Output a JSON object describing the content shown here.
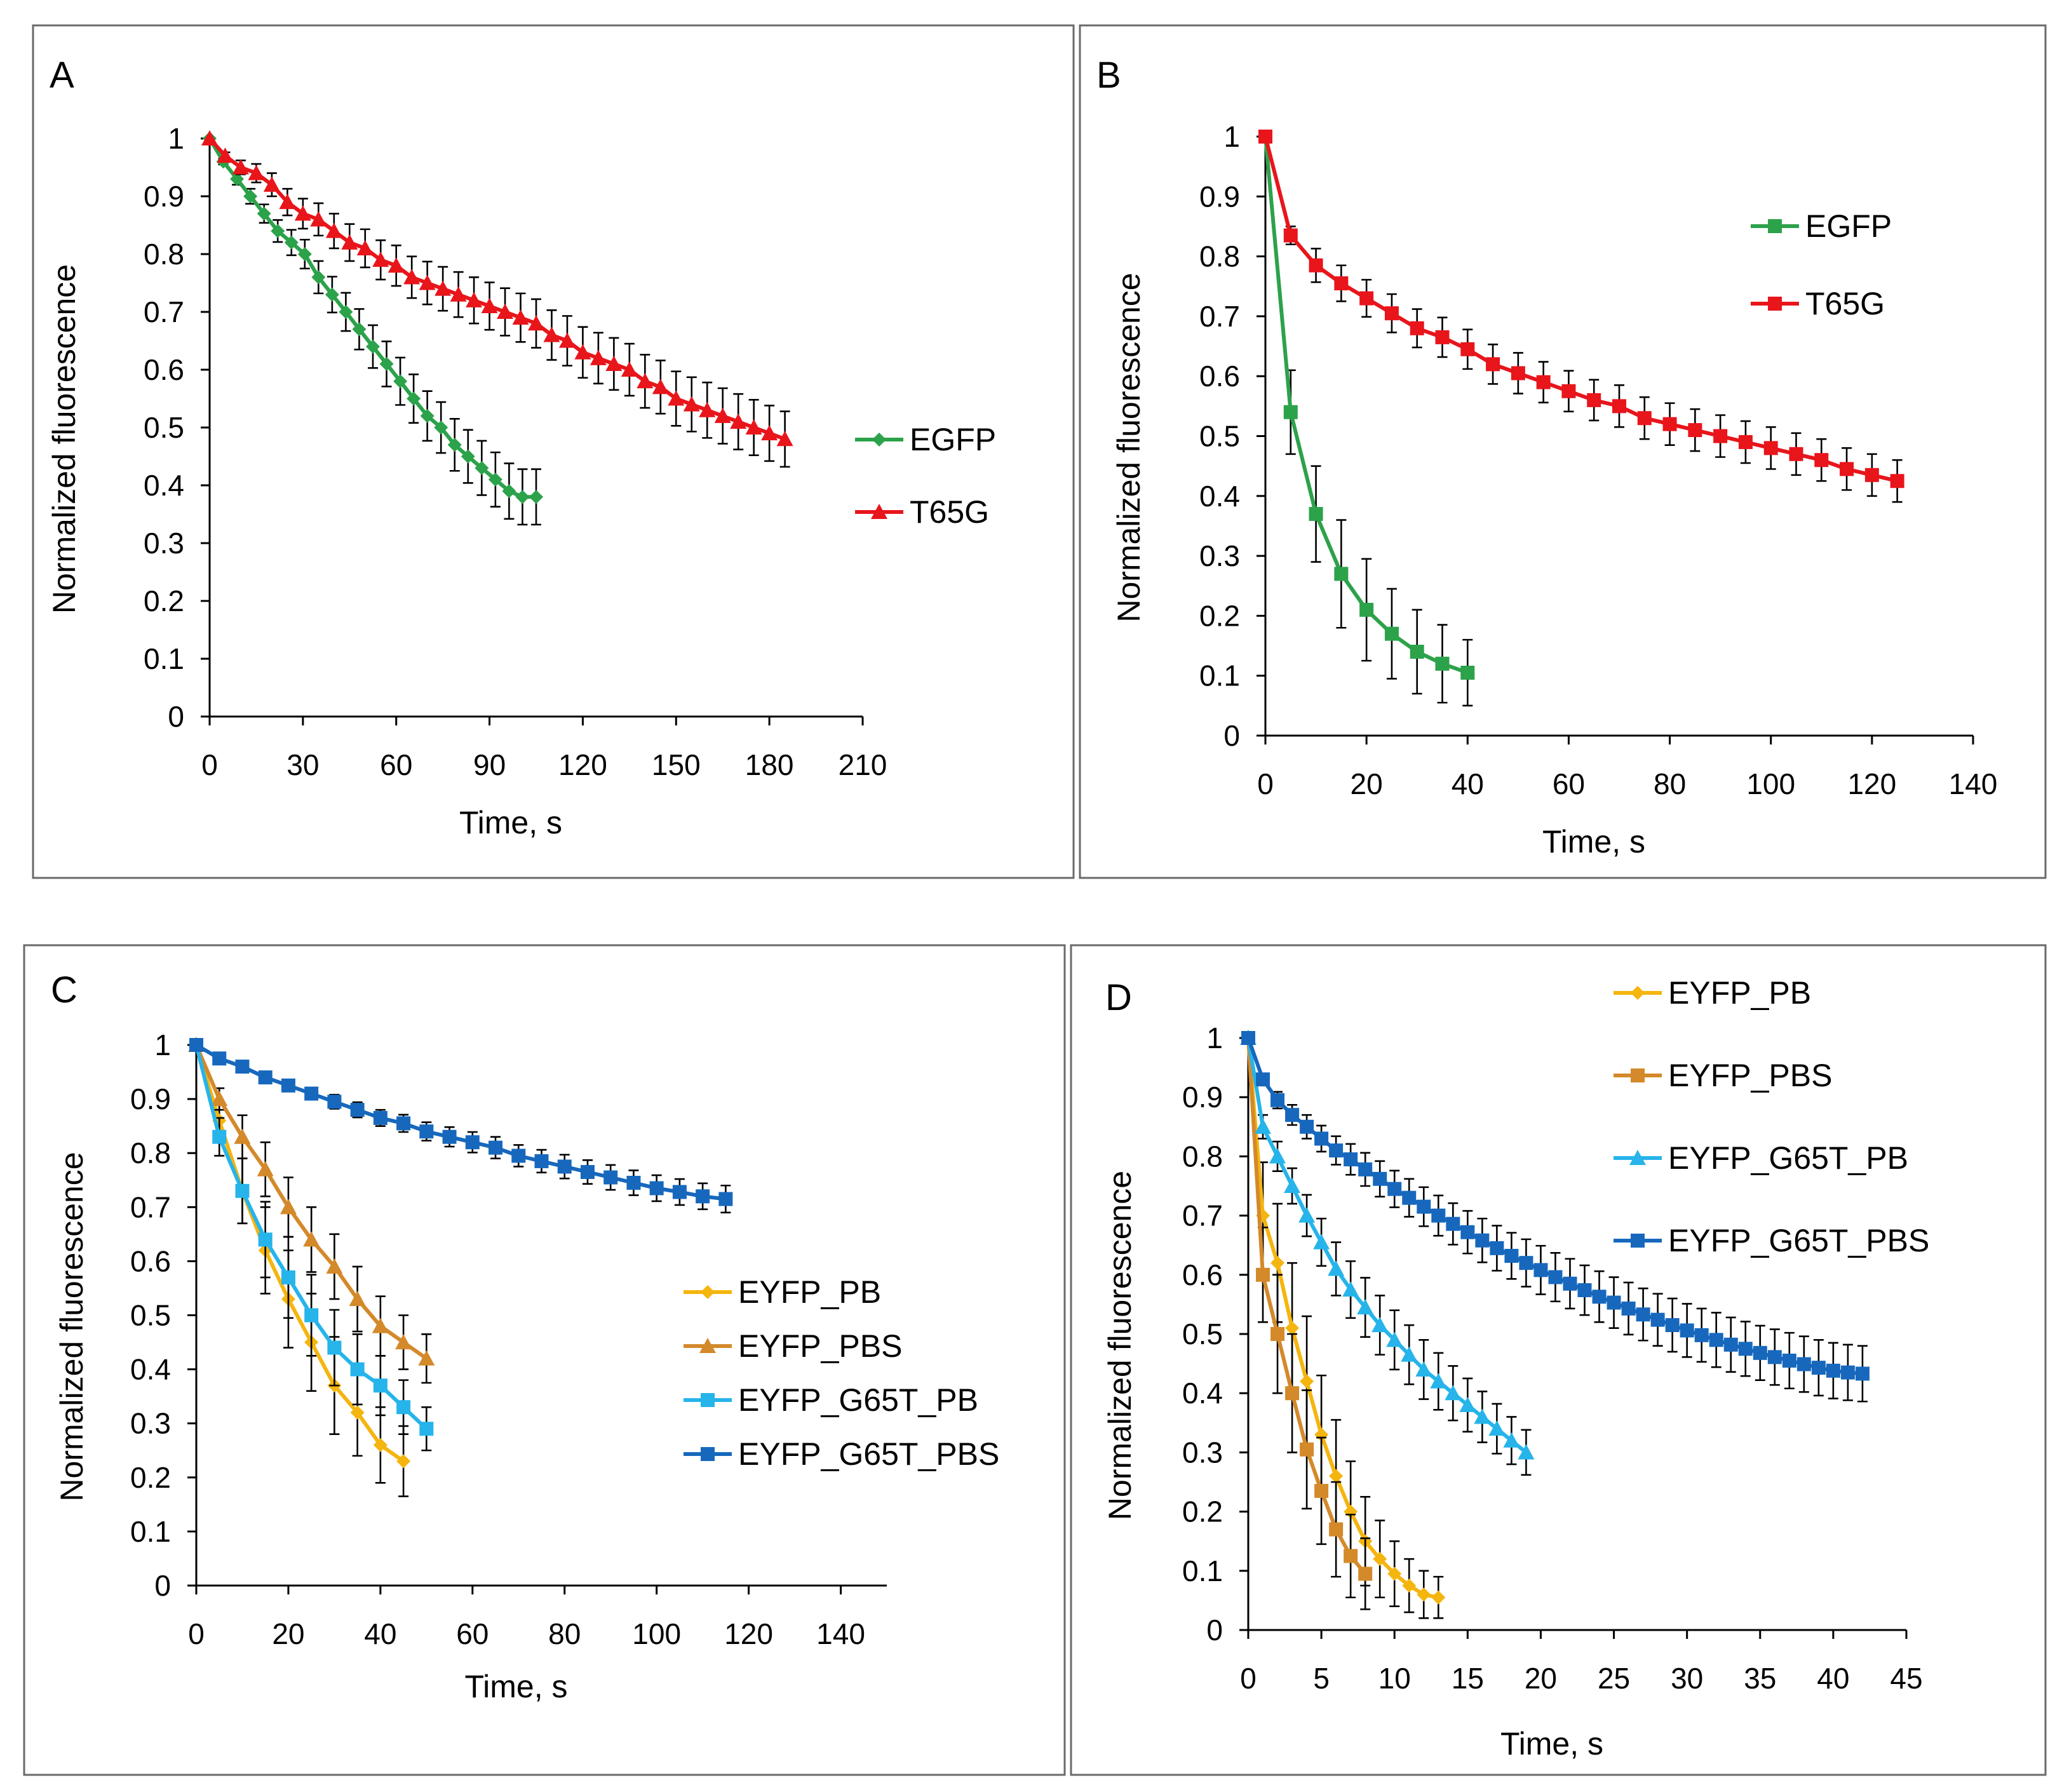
{
  "chart_data": [
    {
      "panel": "A",
      "type": "line",
      "xlabel": "Time, s",
      "ylabel": "Normalized fluorescence",
      "xlim": [
        0,
        210
      ],
      "ylim": [
        0,
        1
      ],
      "xticks": [
        0,
        30,
        60,
        90,
        120,
        150,
        180,
        210
      ],
      "yticks": [
        0,
        0.1,
        0.2,
        0.3,
        0.4,
        0.5,
        0.6,
        0.7,
        0.8,
        0.9,
        1
      ],
      "ytick_labels": [
        "0",
        "0.1",
        "0.2",
        "0.3",
        "0.4",
        "0.5",
        "0.6",
        "0.7",
        "0.8",
        "0.9",
        "1"
      ],
      "legend": "right",
      "series": [
        {
          "name": "EGFP",
          "color": "#2ca24a",
          "marker": "diamond",
          "x": [
            0,
            4.4,
            8.8,
            13.1,
            17.5,
            21.9,
            26.3,
            30.6,
            35,
            39.4,
            43.8,
            48.1,
            52.5,
            56.9,
            61.3,
            65.6,
            70,
            74.4,
            78.8,
            83.1,
            87.5,
            91.9,
            96.3,
            100.6,
            105
          ],
          "y": [
            1,
            0.96,
            0.93,
            0.9,
            0.87,
            0.84,
            0.82,
            0.8,
            0.76,
            0.73,
            0.7,
            0.67,
            0.64,
            0.61,
            0.58,
            0.55,
            0.52,
            0.5,
            0.47,
            0.45,
            0.43,
            0.41,
            0.39,
            0.38,
            0.38
          ],
          "err": [
            0,
            0.005,
            0.01,
            0.013,
            0.016,
            0.019,
            0.022,
            0.025,
            0.028,
            0.031,
            0.033,
            0.035,
            0.037,
            0.039,
            0.041,
            0.042,
            0.043,
            0.044,
            0.045,
            0.046,
            0.047,
            0.047,
            0.048,
            0.048,
            0.048
          ]
        },
        {
          "name": "T65G",
          "color": "#e8151b",
          "marker": "triangle",
          "x": [
            0,
            5,
            10,
            15,
            20,
            25,
            30,
            35,
            40,
            45,
            50,
            55,
            60,
            65,
            70,
            75,
            80,
            85,
            90,
            95,
            100,
            105,
            110,
            115,
            120,
            125,
            130,
            135,
            140,
            145,
            150,
            155,
            160,
            165,
            170,
            175,
            180,
            185
          ],
          "y": [
            1,
            0.97,
            0.95,
            0.94,
            0.92,
            0.89,
            0.87,
            0.86,
            0.84,
            0.82,
            0.81,
            0.79,
            0.78,
            0.76,
            0.75,
            0.74,
            0.73,
            0.72,
            0.71,
            0.7,
            0.69,
            0.68,
            0.66,
            0.65,
            0.63,
            0.62,
            0.61,
            0.6,
            0.58,
            0.57,
            0.55,
            0.54,
            0.53,
            0.52,
            0.51,
            0.5,
            0.49,
            0.48
          ],
          "err": [
            0,
            0.006,
            0.012,
            0.016,
            0.02,
            0.023,
            0.026,
            0.028,
            0.03,
            0.032,
            0.033,
            0.034,
            0.035,
            0.036,
            0.037,
            0.038,
            0.039,
            0.04,
            0.041,
            0.041,
            0.042,
            0.042,
            0.043,
            0.043,
            0.044,
            0.044,
            0.045,
            0.045,
            0.046,
            0.046,
            0.047,
            0.047,
            0.048,
            0.048,
            0.048,
            0.048,
            0.048,
            0.048
          ]
        }
      ]
    },
    {
      "panel": "B",
      "type": "line",
      "xlabel": "Time, s",
      "ylabel": "Normalized fluorescence",
      "xlim": [
        0,
        140
      ],
      "ylim": [
        0,
        1
      ],
      "xticks": [
        0,
        20,
        40,
        60,
        80,
        100,
        120,
        140
      ],
      "yticks": [
        0,
        0.1,
        0.2,
        0.3,
        0.4,
        0.5,
        0.6,
        0.7,
        0.8,
        0.9,
        1
      ],
      "ytick_labels": [
        "0",
        "0.1",
        "0.2",
        "0.3",
        "0.4",
        "0.5",
        "0.6",
        "0.7",
        "0.8",
        "0.9",
        "1"
      ],
      "legend": "top-right",
      "series": [
        {
          "name": "EGFP",
          "color": "#2ca24a",
          "marker": "square",
          "x": [
            0,
            5,
            10,
            15,
            20,
            25,
            30,
            35,
            40
          ],
          "y": [
            1,
            0.54,
            0.37,
            0.27,
            0.21,
            0.17,
            0.14,
            0.12,
            0.105
          ],
          "err": [
            0,
            0.07,
            0.08,
            0.09,
            0.085,
            0.075,
            0.07,
            0.065,
            0.055
          ]
        },
        {
          "name": "T65G",
          "color": "#e8151b",
          "marker": "square",
          "x": [
            0,
            5,
            10,
            15,
            20,
            25,
            30,
            35,
            40,
            45,
            50,
            55,
            60,
            65,
            70,
            75,
            80,
            85,
            90,
            95,
            100,
            105,
            110,
            115,
            120,
            125
          ],
          "y": [
            1,
            0.835,
            0.785,
            0.755,
            0.73,
            0.705,
            0.68,
            0.665,
            0.645,
            0.62,
            0.605,
            0.59,
            0.575,
            0.56,
            0.55,
            0.53,
            0.52,
            0.51,
            0.5,
            0.49,
            0.48,
            0.47,
            0.46,
            0.445,
            0.435,
            0.425
          ],
          "err": [
            0,
            0.015,
            0.028,
            0.03,
            0.031,
            0.032,
            0.032,
            0.033,
            0.033,
            0.033,
            0.034,
            0.034,
            0.034,
            0.034,
            0.035,
            0.035,
            0.035,
            0.035,
            0.035,
            0.035,
            0.035,
            0.035,
            0.035,
            0.035,
            0.035,
            0.035
          ]
        }
      ]
    },
    {
      "panel": "C",
      "type": "line",
      "xlabel": "Time, s",
      "ylabel": "Normalized fluorescence",
      "xlim": [
        0,
        150
      ],
      "ylim": [
        0,
        1
      ],
      "xticks": [
        0,
        20,
        40,
        60,
        80,
        100,
        120,
        140
      ],
      "yticks": [
        0,
        0.1,
        0.2,
        0.3,
        0.4,
        0.5,
        0.6,
        0.7,
        0.8,
        0.9,
        1
      ],
      "ytick_labels": [
        "0",
        "0.1",
        "0.2",
        "0.3",
        "0.4",
        "0.5",
        "0.6",
        "0.7",
        "0.8",
        "0.9",
        "1"
      ],
      "legend": "right",
      "series": [
        {
          "name": "EYFP_PB",
          "color": "#f5b50f",
          "marker": "diamond",
          "x": [
            0,
            5,
            10,
            15,
            20,
            25,
            30,
            35,
            40,
            45
          ],
          "y": [
            1,
            0.86,
            0.73,
            0.62,
            0.53,
            0.45,
            0.37,
            0.32,
            0.26,
            0.23
          ],
          "err": [
            0,
            0.03,
            0.06,
            0.08,
            0.09,
            0.09,
            0.09,
            0.08,
            0.07,
            0.065
          ]
        },
        {
          "name": "EYFP_PBS",
          "color": "#d4892a",
          "marker": "triangle",
          "x": [
            0,
            5,
            10,
            15,
            20,
            25,
            30,
            35,
            40,
            45,
            50
          ],
          "y": [
            1,
            0.9,
            0.83,
            0.77,
            0.7,
            0.64,
            0.59,
            0.53,
            0.48,
            0.45,
            0.42
          ],
          "err": [
            0,
            0.02,
            0.04,
            0.05,
            0.055,
            0.06,
            0.06,
            0.06,
            0.055,
            0.05,
            0.045
          ]
        },
        {
          "name": "EYFP_G65T_PB",
          "color": "#26b4ea",
          "marker": "square",
          "x": [
            0,
            5,
            10,
            15,
            20,
            25,
            30,
            35,
            40,
            45,
            50
          ],
          "y": [
            1,
            0.83,
            0.73,
            0.64,
            0.57,
            0.5,
            0.44,
            0.4,
            0.37,
            0.33,
            0.29
          ],
          "err": [
            0,
            0.035,
            0.06,
            0.07,
            0.075,
            0.075,
            0.07,
            0.065,
            0.055,
            0.05,
            0.04
          ]
        },
        {
          "name": "EYFP_G65T_PBS",
          "color": "#1768bd",
          "marker": "square",
          "x": [
            0,
            5,
            10,
            15,
            20,
            25,
            30,
            35,
            40,
            45,
            50,
            55,
            60,
            65,
            70,
            75,
            80,
            85,
            90,
            95,
            100,
            105,
            110,
            115
          ],
          "y": [
            1,
            0.975,
            0.96,
            0.94,
            0.925,
            0.91,
            0.895,
            0.88,
            0.865,
            0.855,
            0.84,
            0.83,
            0.82,
            0.81,
            0.795,
            0.785,
            0.775,
            0.765,
            0.755,
            0.745,
            0.735,
            0.728,
            0.72,
            0.715
          ],
          "err": [
            0,
            0.004,
            0.006,
            0.008,
            0.01,
            0.011,
            0.013,
            0.014,
            0.015,
            0.016,
            0.017,
            0.018,
            0.019,
            0.02,
            0.02,
            0.021,
            0.022,
            0.022,
            0.023,
            0.023,
            0.024,
            0.024,
            0.024,
            0.025
          ]
        }
      ]
    },
    {
      "panel": "D",
      "type": "line",
      "xlabel": "Time, s",
      "ylabel": "Normalized fluorescence",
      "xlim": [
        0,
        45
      ],
      "ylim": [
        0,
        1
      ],
      "xticks": [
        0,
        5,
        10,
        15,
        20,
        25,
        30,
        35,
        40,
        45
      ],
      "yticks": [
        0,
        0.1,
        0.2,
        0.3,
        0.4,
        0.5,
        0.6,
        0.7,
        0.8,
        0.9,
        1
      ],
      "ytick_labels": [
        "0",
        "0.1",
        "0.2",
        "0.3",
        "0.4",
        "0.5",
        "0.6",
        "0.7",
        "0.8",
        "0.9",
        "1"
      ],
      "legend": "top-right",
      "series": [
        {
          "name": "EYFP_PB",
          "color": "#f5b50f",
          "marker": "diamond",
          "x": [
            0,
            1,
            2,
            3,
            4,
            5,
            6,
            7,
            8,
            9,
            10,
            11,
            12,
            13
          ],
          "y": [
            1,
            0.7,
            0.62,
            0.51,
            0.42,
            0.33,
            0.26,
            0.2,
            0.15,
            0.12,
            0.095,
            0.075,
            0.06,
            0.055
          ],
          "err": [
            0,
            0.09,
            0.1,
            0.11,
            0.11,
            0.1,
            0.095,
            0.085,
            0.075,
            0.065,
            0.055,
            0.045,
            0.04,
            0.035
          ]
        },
        {
          "name": "EYFP_PBS",
          "color": "#d4892a",
          "marker": "square",
          "x": [
            0,
            1,
            2,
            3,
            4,
            5,
            6,
            7,
            8
          ],
          "y": [
            1,
            0.6,
            0.5,
            0.4,
            0.305,
            0.235,
            0.17,
            0.125,
            0.095
          ],
          "err": [
            0,
            0.08,
            0.1,
            0.1,
            0.1,
            0.09,
            0.08,
            0.07,
            0.06
          ]
        },
        {
          "name": "EYFP_G65T_PB",
          "color": "#26b4ea",
          "marker": "triangle",
          "x": [
            0,
            1,
            2,
            3,
            4,
            5,
            6,
            7,
            8,
            9,
            10,
            11,
            12,
            13,
            14,
            15,
            16,
            17,
            18,
            19
          ],
          "y": [
            1,
            0.85,
            0.8,
            0.75,
            0.7,
            0.655,
            0.61,
            0.575,
            0.545,
            0.515,
            0.49,
            0.465,
            0.44,
            0.42,
            0.4,
            0.38,
            0.36,
            0.34,
            0.32,
            0.3
          ],
          "err": [
            0,
            0.02,
            0.025,
            0.03,
            0.035,
            0.04,
            0.045,
            0.048,
            0.05,
            0.05,
            0.05,
            0.05,
            0.05,
            0.048,
            0.046,
            0.045,
            0.043,
            0.042,
            0.04,
            0.038
          ]
        },
        {
          "name": "EYFP_G65T_PBS",
          "color": "#1768bd",
          "marker": "square",
          "x": [
            0,
            1,
            2,
            3,
            4,
            5,
            6,
            7,
            8,
            9,
            10,
            11,
            12,
            13,
            14,
            15,
            16,
            17,
            18,
            19,
            20,
            21,
            22,
            23,
            24,
            25,
            26,
            27,
            28,
            29,
            30,
            31,
            32,
            33,
            34,
            35,
            36,
            37,
            38,
            39,
            40,
            41,
            42
          ],
          "y": [
            1,
            0.93,
            0.895,
            0.87,
            0.85,
            0.83,
            0.81,
            0.795,
            0.778,
            0.762,
            0.745,
            0.73,
            0.715,
            0.7,
            0.686,
            0.672,
            0.658,
            0.645,
            0.632,
            0.62,
            0.608,
            0.596,
            0.585,
            0.574,
            0.563,
            0.553,
            0.543,
            0.533,
            0.524,
            0.515,
            0.506,
            0.498,
            0.49,
            0.482,
            0.475,
            0.468,
            0.461,
            0.455,
            0.449,
            0.443,
            0.438,
            0.435,
            0.433
          ],
          "err": [
            0,
            0.01,
            0.014,
            0.017,
            0.02,
            0.022,
            0.024,
            0.026,
            0.028,
            0.03,
            0.031,
            0.032,
            0.033,
            0.034,
            0.035,
            0.036,
            0.037,
            0.038,
            0.039,
            0.04,
            0.041,
            0.041,
            0.042,
            0.042,
            0.043,
            0.043,
            0.044,
            0.044,
            0.044,
            0.045,
            0.045,
            0.045,
            0.046,
            0.046,
            0.046,
            0.046,
            0.047,
            0.047,
            0.047,
            0.047,
            0.047,
            0.047,
            0.047
          ]
        }
      ]
    }
  ]
}
